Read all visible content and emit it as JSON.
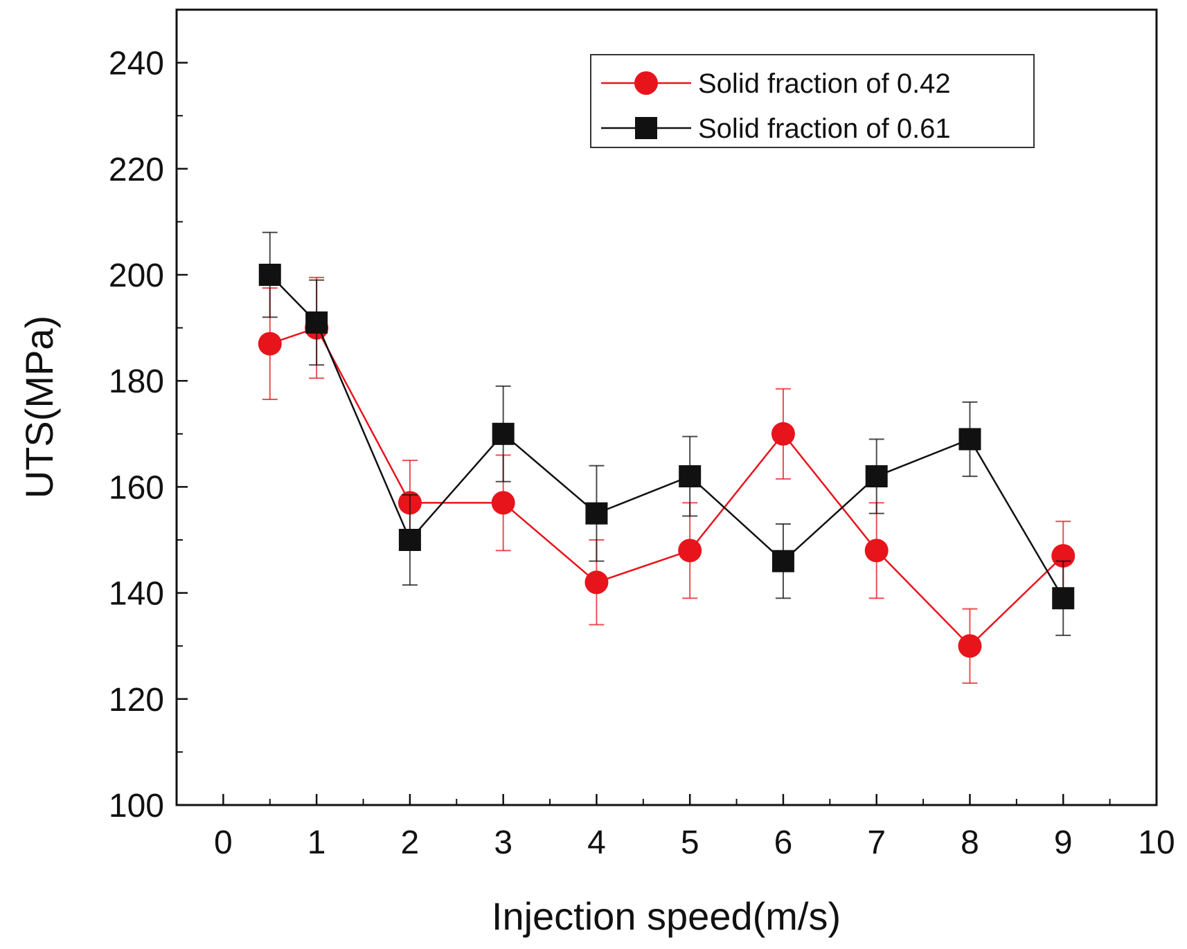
{
  "chart_data": {
    "type": "line",
    "title": "",
    "xlabel": "Injection speed(m/s)",
    "ylabel": "UTS(MPa)",
    "xlim": [
      -0.5,
      10
    ],
    "ylim": [
      100,
      250
    ],
    "x_ticks": [
      "0",
      "1",
      "2",
      "3",
      "4",
      "5",
      "6",
      "7",
      "8",
      "9",
      "10"
    ],
    "y_ticks": [
      "100",
      "120",
      "140",
      "160",
      "180",
      "200",
      "220",
      "240"
    ],
    "grid": false,
    "legend_position": "top-right",
    "series": [
      {
        "name": "Solid fraction of 0.42",
        "color": "#e8141c",
        "marker": "circle",
        "x": [
          0.5,
          1,
          2,
          3,
          4,
          5,
          6,
          7,
          8,
          9
        ],
        "y": [
          187,
          190,
          157,
          157,
          142,
          148,
          170,
          148,
          130,
          147
        ],
        "error": [
          10.5,
          9.5,
          8,
          9,
          8,
          9,
          8.5,
          9,
          7,
          6.5
        ]
      },
      {
        "name": "Solid fraction of 0.61",
        "color": "#111111",
        "marker": "square",
        "x": [
          0.5,
          1,
          2,
          3,
          4,
          5,
          6,
          7,
          8,
          9
        ],
        "y": [
          200,
          191,
          150,
          170,
          155,
          162,
          146,
          162,
          169,
          139
        ],
        "error": [
          8,
          8,
          8.5,
          9,
          9,
          7.5,
          7,
          7,
          7,
          7
        ]
      }
    ]
  }
}
